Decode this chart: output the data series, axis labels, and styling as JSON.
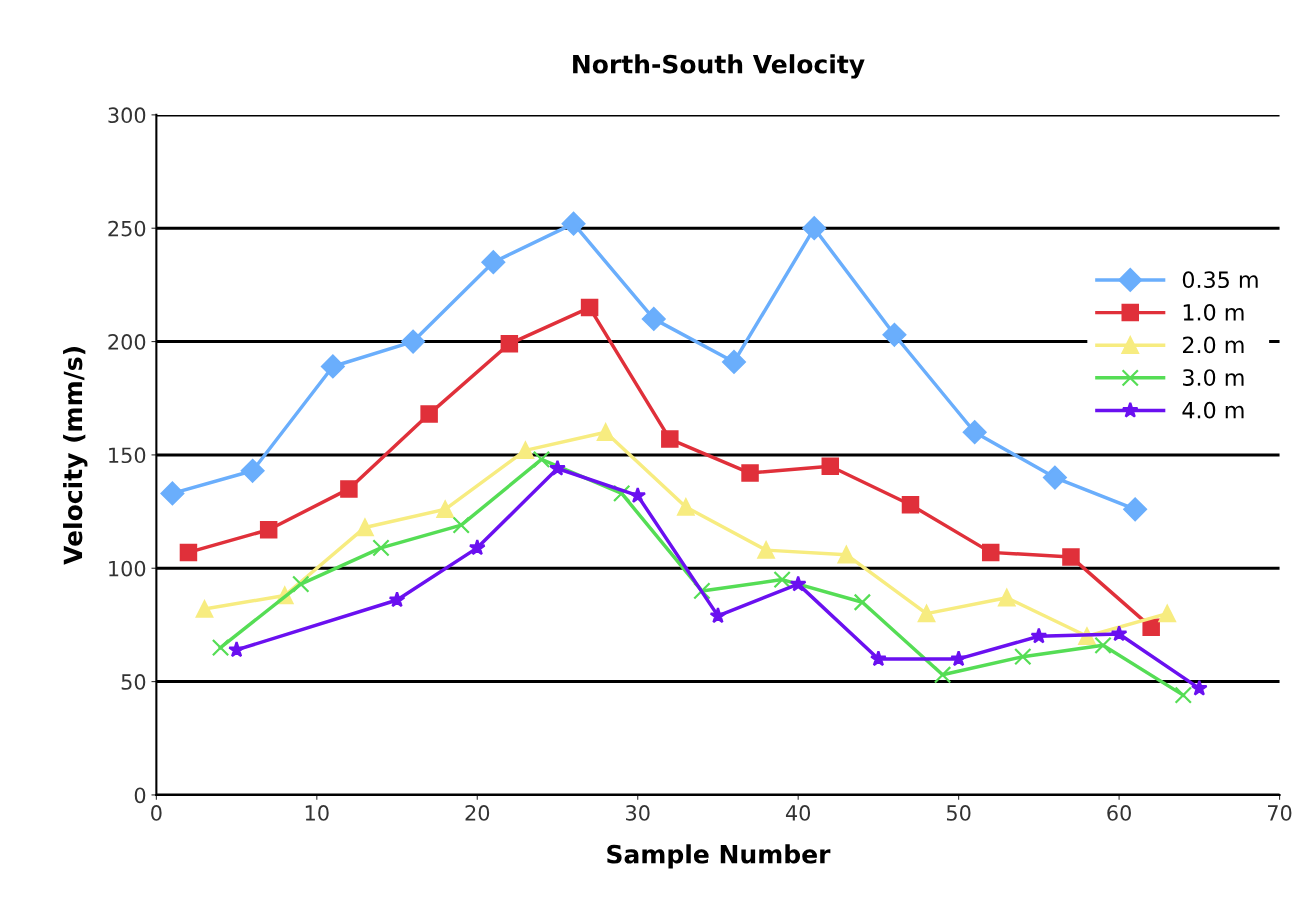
{
  "chart_data": {
    "type": "line",
    "title": "North-South Velocity",
    "xlabel": "Sample Number",
    "ylabel": "Velocity (mm/s)",
    "xlim": [
      0,
      70
    ],
    "xticks": [
      0,
      10,
      20,
      30,
      40,
      50,
      60,
      70
    ],
    "ylim": [
      0,
      300
    ],
    "yticks": [
      0,
      50,
      100,
      150,
      200,
      250,
      300
    ],
    "grid": "y",
    "legend": "top right",
    "line_style": "solid",
    "series": [
      {
        "name": "0.35 m",
        "color": "#6aaefc",
        "marker": "diamond",
        "x": [
          1,
          6,
          11,
          16,
          21,
          26,
          31,
          36,
          41,
          46,
          51,
          56,
          61
        ],
        "values": [
          133,
          143,
          189,
          200,
          235,
          252,
          210,
          191,
          250,
          203,
          160,
          140,
          126
        ]
      },
      {
        "name": "1.0 m",
        "color": "#e0303a",
        "marker": "square",
        "x": [
          2,
          7,
          12,
          17,
          22,
          27,
          32,
          37,
          42,
          47,
          52,
          57,
          62
        ],
        "values": [
          107,
          117,
          135,
          168,
          199,
          215,
          157,
          142,
          145,
          128,
          107,
          105,
          74
        ]
      },
      {
        "name": "2.0 m",
        "color": "#f7ec80",
        "marker": "triangle",
        "x": [
          3,
          8,
          13,
          18,
          23,
          28,
          33,
          38,
          43,
          48,
          53,
          58,
          63
        ],
        "values": [
          82,
          88,
          118,
          126,
          152,
          160,
          127,
          108,
          106,
          80,
          87,
          70,
          80
        ]
      },
      {
        "name": "3.0 m",
        "color": "#55dd55",
        "marker": "cross",
        "x": [
          4,
          9,
          14,
          19,
          24,
          29,
          34,
          39,
          44,
          49,
          54,
          59,
          64
        ],
        "values": [
          65,
          93,
          109,
          119,
          148,
          133,
          90,
          95,
          85,
          53,
          61,
          66,
          44
        ]
      },
      {
        "name": "4.0 m",
        "color": "#6a10f0",
        "marker": "star",
        "x": [
          5,
          15,
          20,
          25,
          30,
          35,
          40,
          45,
          50,
          55,
          60,
          65
        ],
        "values": [
          64,
          86,
          109,
          144,
          132,
          79,
          93,
          60,
          60,
          70,
          71,
          47
        ]
      }
    ]
  }
}
